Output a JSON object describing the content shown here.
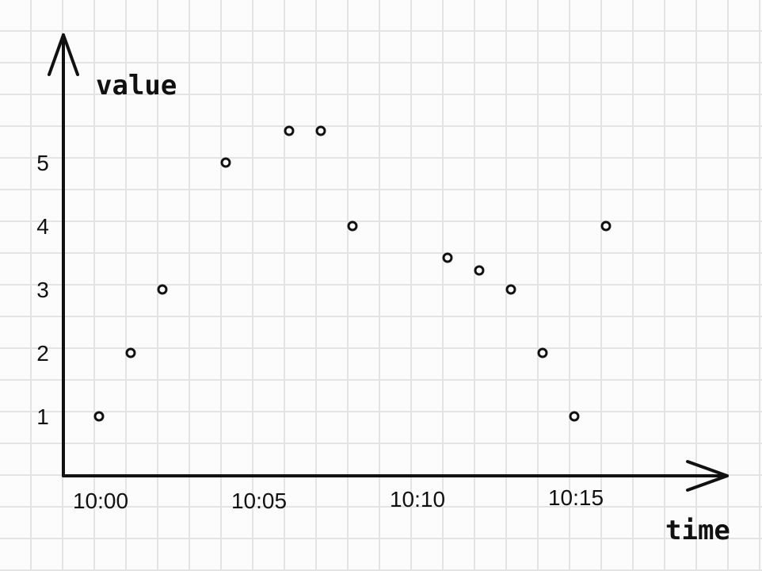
{
  "chart_data": {
    "type": "scatter",
    "xlabel": "time",
    "ylabel": "value",
    "x_ticks": [
      "10:00",
      "10:05",
      "10:10",
      "10:15"
    ],
    "y_ticks": [
      1,
      2,
      3,
      4,
      5
    ],
    "xlim": [
      "10:00",
      "10:19"
    ],
    "ylim": [
      0,
      6
    ],
    "grid": true,
    "legend": "none",
    "marker": "hollow-circle",
    "points": [
      {
        "x": "10:00",
        "y": 1.0
      },
      {
        "x": "10:01",
        "y": 2.0
      },
      {
        "x": "10:02",
        "y": 3.0
      },
      {
        "x": "10:04",
        "y": 5.0
      },
      {
        "x": "10:06",
        "y": 5.5
      },
      {
        "x": "10:07",
        "y": 5.5
      },
      {
        "x": "10:08",
        "y": 4.0
      },
      {
        "x": "10:11",
        "y": 3.5
      },
      {
        "x": "10:12",
        "y": 3.3
      },
      {
        "x": "10:13",
        "y": 3.0
      },
      {
        "x": "10:14",
        "y": 2.0
      },
      {
        "x": "10:15",
        "y": 1.0
      },
      {
        "x": "10:16",
        "y": 4.0
      }
    ]
  },
  "colors": {
    "ink": "#111111",
    "grid": "#e4e4e4",
    "background": "#fcfcfc"
  }
}
